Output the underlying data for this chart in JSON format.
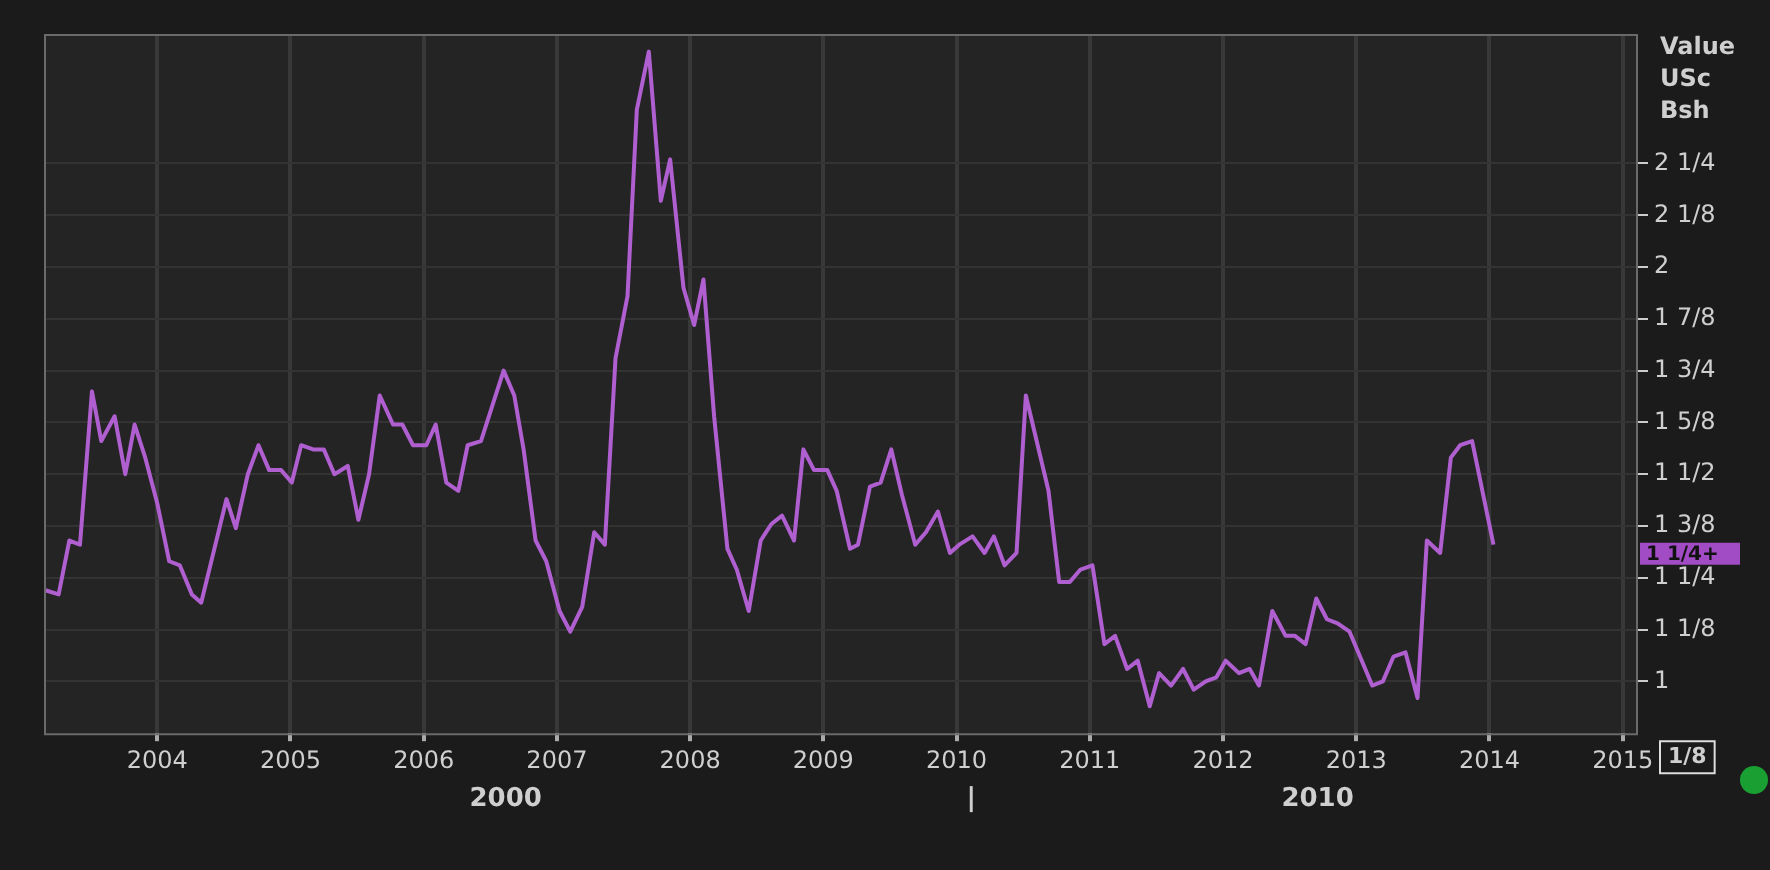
{
  "chart_data": {
    "type": "line",
    "ylabel": "Value\nUSc\nBsh",
    "x": [
      2003.16,
      2003.26,
      2003.34,
      2003.42,
      2003.51,
      2003.58,
      2003.68,
      2003.76,
      2003.83,
      2003.91,
      2004.0,
      2004.09,
      2004.17,
      2004.26,
      2004.33,
      2004.52,
      2004.59,
      2004.68,
      2004.76,
      2004.84,
      2004.93,
      2005.01,
      2005.08,
      2005.17,
      2005.25,
      2005.33,
      2005.43,
      2005.51,
      2005.59,
      2005.67,
      2005.77,
      2005.84,
      2005.92,
      2006.02,
      2006.09,
      2006.17,
      2006.26,
      2006.33,
      2006.43,
      2006.51,
      2006.6,
      2006.68,
      2006.75,
      2006.84,
      2006.92,
      2007.02,
      2007.1,
      2007.19,
      2007.28,
      2007.36,
      2007.44,
      2007.53,
      2007.6,
      2007.69,
      2007.78,
      2007.85,
      2007.95,
      2008.03,
      2008.1,
      2008.18,
      2008.28,
      2008.35,
      2008.44,
      2008.53,
      2008.61,
      2008.69,
      2008.78,
      2008.85,
      2008.93,
      2009.03,
      2009.1,
      2009.2,
      2009.26,
      2009.35,
      2009.43,
      2009.51,
      2009.59,
      2009.69,
      2009.77,
      2009.86,
      2009.95,
      2010.02,
      2010.12,
      2010.21,
      2010.28,
      2010.36,
      2010.45,
      2010.52,
      2010.69,
      2010.77,
      2010.85,
      2010.93,
      2011.02,
      2011.11,
      2011.19,
      2011.28,
      2011.36,
      2011.45,
      2011.52,
      2011.61,
      2011.7,
      2011.78,
      2011.87,
      2011.95,
      2012.02,
      2012.12,
      2012.2,
      2012.27,
      2012.37,
      2012.47,
      2012.54,
      2012.62,
      2012.7,
      2012.78,
      2012.86,
      2012.95,
      2013.12,
      2013.2,
      2013.28,
      2013.37,
      2013.46,
      2013.53,
      2013.63,
      2013.71,
      2013.78,
      2013.87,
      2014.03
    ],
    "series": [
      {
        "color": "#b05fd0",
        "values": [
          1.22,
          1.21,
          1.34,
          1.33,
          1.7,
          1.58,
          1.64,
          1.5,
          1.62,
          1.54,
          1.43,
          1.29,
          1.28,
          1.21,
          1.19,
          1.44,
          1.37,
          1.5,
          1.57,
          1.51,
          1.51,
          1.48,
          1.57,
          1.56,
          1.56,
          1.5,
          1.52,
          1.39,
          1.5,
          1.69,
          1.62,
          1.62,
          1.57,
          1.57,
          1.62,
          1.48,
          1.46,
          1.57,
          1.58,
          1.66,
          1.75,
          1.69,
          1.56,
          1.34,
          1.29,
          1.17,
          1.12,
          1.18,
          1.36,
          1.33,
          1.78,
          1.93,
          2.38,
          2.52,
          2.16,
          2.26,
          1.95,
          1.86,
          1.97,
          1.64,
          1.32,
          1.27,
          1.17,
          1.34,
          1.38,
          1.4,
          1.34,
          1.56,
          1.51,
          1.51,
          1.46,
          1.32,
          1.33,
          1.47,
          1.48,
          1.56,
          1.45,
          1.33,
          1.36,
          1.41,
          1.31,
          1.33,
          1.35,
          1.31,
          1.35,
          1.28,
          1.31,
          1.69,
          1.46,
          1.24,
          1.24,
          1.27,
          1.28,
          1.09,
          1.11,
          1.03,
          1.05,
          0.94,
          1.02,
          0.99,
          1.03,
          0.98,
          1.0,
          1.01,
          1.05,
          1.02,
          1.03,
          0.99,
          1.17,
          1.11,
          1.11,
          1.09,
          1.2,
          1.15,
          1.14,
          1.12,
          0.99,
          1.0,
          1.06,
          1.07,
          0.96,
          1.34,
          1.31,
          1.54,
          1.57,
          1.58,
          1.33
        ]
      }
    ],
    "xlim": [
      2003.15,
      2015.1
    ],
    "xticks": [
      2004,
      2005,
      2006,
      2007,
      2008,
      2009,
      2010,
      2011,
      2012,
      2013,
      2014,
      2015
    ],
    "ylim": [
      0.875,
      2.5625
    ],
    "yticks": [
      {
        "value": 1,
        "label": "1"
      },
      {
        "value": 1.125,
        "label": "1 1/8"
      },
      {
        "value": 1.25,
        "label": "1 1/4"
      },
      {
        "value": 1.375,
        "label": "1 3/8"
      },
      {
        "value": 1.5,
        "label": "1 1/2"
      },
      {
        "value": 1.625,
        "label": "1 5/8"
      },
      {
        "value": 1.75,
        "label": "1 3/4"
      },
      {
        "value": 1.875,
        "label": "1 7/8"
      },
      {
        "value": 2,
        "label": "2"
      },
      {
        "value": 2.125,
        "label": "2 1/8"
      },
      {
        "value": 2.25,
        "label": "2 1/4"
      }
    ],
    "annotations": [
      "2000",
      "|",
      "2010",
      "1/8",
      "1 1/4+"
    ],
    "grid": true,
    "legend": false,
    "marker": "none",
    "line_style": "solid"
  }
}
